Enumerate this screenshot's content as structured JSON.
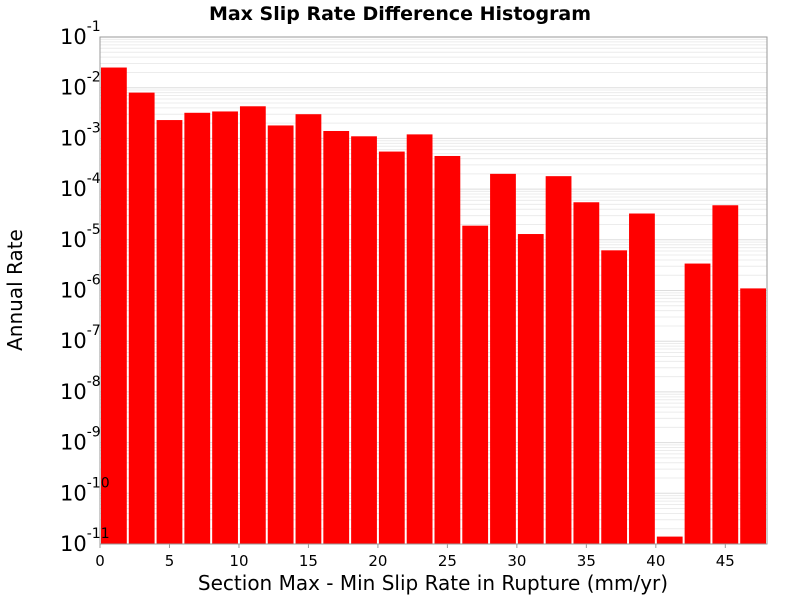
{
  "chart_data": {
    "type": "bar",
    "title": "Max Slip Rate Difference Histogram",
    "xlabel": "Section Max - Min Slip Rate in Rupture (mm/yr)",
    "ylabel": "Annual Rate",
    "y_scale": "log",
    "ylim": [
      1e-11,
      0.1
    ],
    "xlim": [
      0,
      48
    ],
    "bin_width": 2,
    "grid": true,
    "legend": "none",
    "x_ticks": [
      "0",
      "5",
      "10",
      "15",
      "20",
      "25",
      "30",
      "35",
      "40",
      "45"
    ],
    "y_ticks": [
      {
        "base": "10",
        "exp": "-1"
      },
      {
        "base": "10",
        "exp": "-2"
      },
      {
        "base": "10",
        "exp": "-3"
      },
      {
        "base": "10",
        "exp": "-4"
      },
      {
        "base": "10",
        "exp": "-5"
      },
      {
        "base": "10",
        "exp": "-6"
      },
      {
        "base": "10",
        "exp": "-7"
      },
      {
        "base": "10",
        "exp": "-8"
      },
      {
        "base": "10",
        "exp": "-9"
      },
      {
        "base": "10",
        "exp": "-10"
      },
      {
        "base": "10",
        "exp": "-11"
      }
    ],
    "bins": [
      {
        "x": 1,
        "y": 0.025
      },
      {
        "x": 3,
        "y": 0.008
      },
      {
        "x": 5,
        "y": 0.0023
      },
      {
        "x": 7,
        "y": 0.0032
      },
      {
        "x": 9,
        "y": 0.0034
      },
      {
        "x": 11,
        "y": 0.0043
      },
      {
        "x": 13,
        "y": 0.0018
      },
      {
        "x": 15,
        "y": 0.003
      },
      {
        "x": 17,
        "y": 0.0014
      },
      {
        "x": 19,
        "y": 0.0011
      },
      {
        "x": 21,
        "y": 0.00055
      },
      {
        "x": 23,
        "y": 0.0012
      },
      {
        "x": 25,
        "y": 0.00045
      },
      {
        "x": 27,
        "y": 1.9e-05
      },
      {
        "x": 29,
        "y": 0.0002
      },
      {
        "x": 31,
        "y": 1.3e-05
      },
      {
        "x": 33,
        "y": 0.00018
      },
      {
        "x": 35,
        "y": 5.5e-05
      },
      {
        "x": 37,
        "y": 6.2e-06
      },
      {
        "x": 39,
        "y": 3.3e-05
      },
      {
        "x": 41,
        "y": 1.4e-11
      },
      {
        "x": 43,
        "y": 3.4e-06
      },
      {
        "x": 45,
        "y": 4.8e-05
      },
      {
        "x": 47,
        "y": 1.1e-06
      }
    ],
    "colors": {
      "bar": "#ff0000",
      "grid_major": "#dddddd",
      "grid_minor": "#ececec",
      "frame": "#999999",
      "background": "#ffffff"
    }
  }
}
